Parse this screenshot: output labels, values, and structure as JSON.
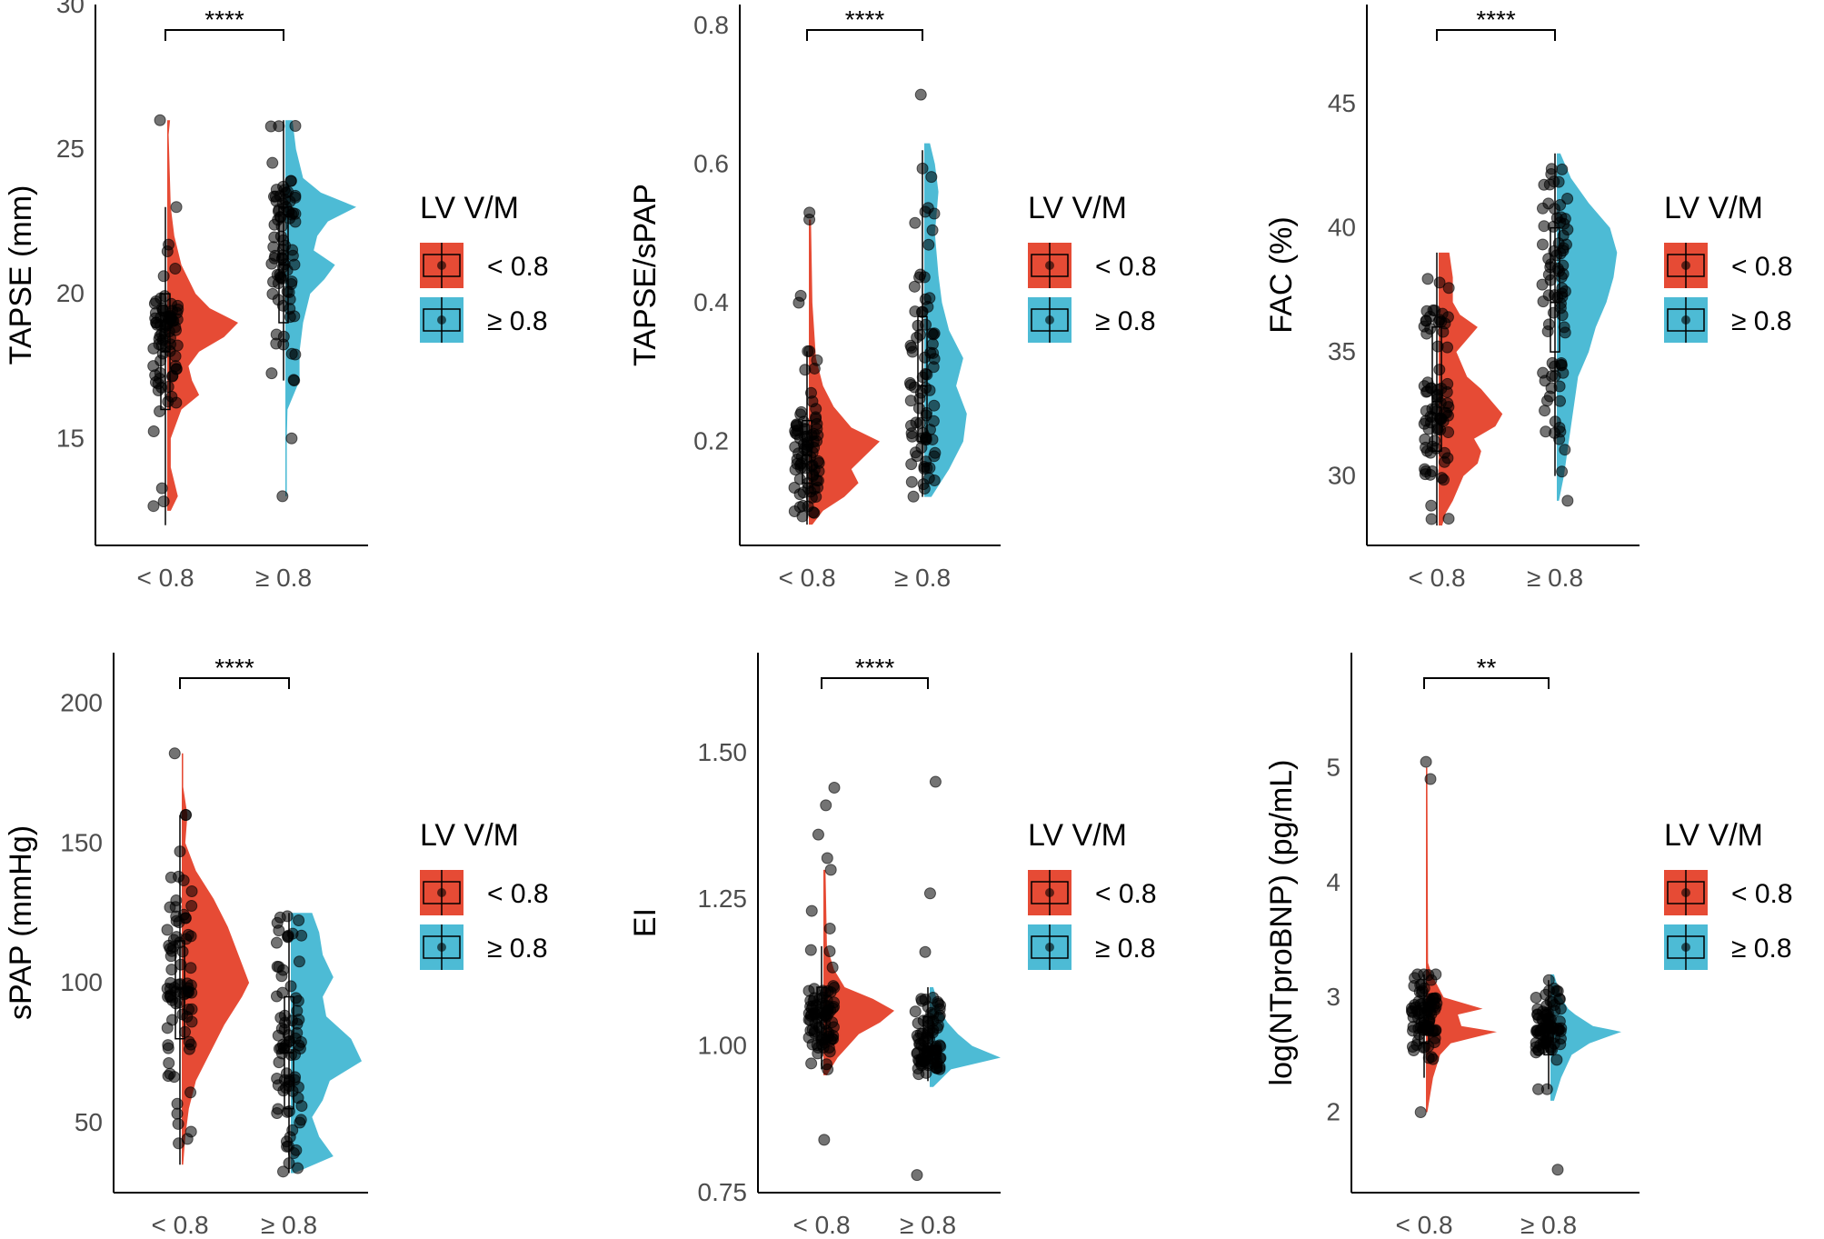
{
  "colors": {
    "group1": "#E64B35",
    "group2": "#4DBBD5",
    "point": "#000000",
    "axis": "#000000",
    "tick_text": "#4D4D4D"
  },
  "legend": {
    "title": "LV V/M",
    "items": [
      "< 0.8",
      "≥ 0.8"
    ]
  },
  "chart_data": [
    {
      "type": "raincloud",
      "title": "",
      "xlabel": "",
      "ylabel": "TAPSE (mm)",
      "categories": [
        "< 0.8",
        "≥ 0.8"
      ],
      "ylim": [
        11.3,
        30
      ],
      "yticks": [
        15,
        20,
        25,
        30
      ],
      "significance": "****",
      "series": [
        {
          "name": "< 0.8",
          "min": 12,
          "q1": 16,
          "median": 18,
          "q3": 20,
          "max": 23,
          "outliers": [
            26
          ],
          "density": [
            [
              12.5,
              0.05
            ],
            [
              13,
              0.15
            ],
            [
              13.5,
              0.1
            ],
            [
              14,
              0.05
            ],
            [
              15,
              0.05
            ],
            [
              16,
              0.2
            ],
            [
              16.5,
              0.45
            ],
            [
              17,
              0.35
            ],
            [
              17.5,
              0.3
            ],
            [
              18,
              0.45
            ],
            [
              18.5,
              0.8
            ],
            [
              19,
              1.0
            ],
            [
              19.5,
              0.6
            ],
            [
              20,
              0.4
            ],
            [
              21,
              0.2
            ],
            [
              22,
              0.1
            ],
            [
              23,
              0.05
            ],
            [
              25.5,
              0.02
            ],
            [
              26,
              0.04
            ]
          ]
        },
        {
          "name": "≥ 0.8",
          "min": 17,
          "q1": 19,
          "median": 21,
          "q3": 23,
          "max": 26,
          "outliers": [
            15,
            13
          ],
          "density": [
            [
              13,
              0.02
            ],
            [
              15,
              0.02
            ],
            [
              16,
              0.03
            ],
            [
              17,
              0.2
            ],
            [
              18,
              0.2
            ],
            [
              19,
              0.25
            ],
            [
              20,
              0.35
            ],
            [
              20.5,
              0.55
            ],
            [
              21,
              0.7
            ],
            [
              21.5,
              0.4
            ],
            [
              22,
              0.45
            ],
            [
              22.5,
              0.6
            ],
            [
              23,
              1.0
            ],
            [
              23.5,
              0.5
            ],
            [
              24,
              0.25
            ],
            [
              25,
              0.15
            ],
            [
              26,
              0.1
            ]
          ]
        }
      ]
    },
    {
      "type": "raincloud",
      "title": "",
      "xlabel": "",
      "ylabel": "TAPSE/sPAP",
      "categories": [
        "< 0.8",
        "≥ 0.8"
      ],
      "ylim": [
        0.05,
        0.83
      ],
      "yticks": [
        0.2,
        0.4,
        0.6,
        0.8
      ],
      "significance": "****",
      "series": [
        {
          "name": "< 0.8",
          "min": 0.08,
          "q1": 0.14,
          "median": 0.18,
          "q3": 0.23,
          "max": 0.33,
          "outliers": [
            0.4,
            0.41,
            0.52,
            0.53
          ],
          "density": [
            [
              0.08,
              0.05
            ],
            [
              0.1,
              0.2
            ],
            [
              0.12,
              0.5
            ],
            [
              0.14,
              0.7
            ],
            [
              0.16,
              0.6
            ],
            [
              0.18,
              0.8
            ],
            [
              0.2,
              1.0
            ],
            [
              0.22,
              0.6
            ],
            [
              0.25,
              0.35
            ],
            [
              0.28,
              0.2
            ],
            [
              0.32,
              0.1
            ],
            [
              0.4,
              0.05
            ],
            [
              0.52,
              0.03
            ]
          ]
        },
        {
          "name": "≥ 0.8",
          "min": 0.12,
          "q1": 0.2,
          "median": 0.28,
          "q3": 0.38,
          "max": 0.62,
          "outliers": [
            0.7
          ],
          "density": [
            [
              0.12,
              0.1
            ],
            [
              0.16,
              0.35
            ],
            [
              0.2,
              0.55
            ],
            [
              0.24,
              0.6
            ],
            [
              0.28,
              0.45
            ],
            [
              0.32,
              0.55
            ],
            [
              0.36,
              0.35
            ],
            [
              0.4,
              0.25
            ],
            [
              0.44,
              0.2
            ],
            [
              0.5,
              0.15
            ],
            [
              0.56,
              0.2
            ],
            [
              0.6,
              0.15
            ],
            [
              0.63,
              0.08
            ]
          ]
        }
      ]
    },
    {
      "type": "raincloud",
      "title": "",
      "xlabel": "",
      "ylabel": "FAC (%)",
      "categories": [
        "< 0.8",
        "≥ 0.8"
      ],
      "ylim": [
        27.2,
        49
      ],
      "yticks": [
        30,
        35,
        40,
        45
      ],
      "significance": "****",
      "series": [
        {
          "name": "< 0.8",
          "min": 28,
          "q1": 31,
          "median": 33,
          "q3": 36,
          "max": 39,
          "outliers": [],
          "density": [
            [
              28,
              0.05
            ],
            [
              28.5,
              0.1
            ],
            [
              29,
              0.2
            ],
            [
              30,
              0.35
            ],
            [
              30.5,
              0.55
            ],
            [
              31,
              0.6
            ],
            [
              31.5,
              0.5
            ],
            [
              32,
              0.8
            ],
            [
              32.5,
              0.9
            ],
            [
              33,
              0.75
            ],
            [
              33.5,
              0.6
            ],
            [
              34,
              0.4
            ],
            [
              35,
              0.25
            ],
            [
              35.5,
              0.4
            ],
            [
              36,
              0.55
            ],
            [
              36.5,
              0.3
            ],
            [
              37,
              0.2
            ],
            [
              38,
              0.2
            ],
            [
              39,
              0.15
            ]
          ]
        },
        {
          "name": "≥ 0.8",
          "min": 30,
          "q1": 35,
          "median": 37,
          "q3": 40,
          "max": 43,
          "outliers": [
            29
          ],
          "density": [
            [
              29,
              0.03
            ],
            [
              30,
              0.1
            ],
            [
              31,
              0.15
            ],
            [
              32,
              0.2
            ],
            [
              33,
              0.25
            ],
            [
              34,
              0.3
            ],
            [
              35,
              0.45
            ],
            [
              36,
              0.55
            ],
            [
              37,
              0.7
            ],
            [
              38,
              0.8
            ],
            [
              39,
              0.85
            ],
            [
              40,
              0.75
            ],
            [
              41,
              0.45
            ],
            [
              42,
              0.2
            ],
            [
              43,
              0.05
            ]
          ]
        }
      ]
    },
    {
      "type": "raincloud",
      "title": "",
      "xlabel": "",
      "ylabel": "sPAP (mmHg)",
      "categories": [
        "< 0.8",
        "≥ 0.8"
      ],
      "ylim": [
        25,
        218
      ],
      "yticks": [
        50,
        100,
        150,
        200
      ],
      "significance": "****",
      "series": [
        {
          "name": "< 0.8",
          "min": 35,
          "q1": 80,
          "median": 98,
          "q3": 115,
          "max": 160,
          "outliers": [
            182
          ],
          "density": [
            [
              35,
              0.02
            ],
            [
              45,
              0.05
            ],
            [
              55,
              0.1
            ],
            [
              65,
              0.2
            ],
            [
              75,
              0.4
            ],
            [
              85,
              0.6
            ],
            [
              95,
              0.85
            ],
            [
              100,
              0.95
            ],
            [
              110,
              0.8
            ],
            [
              120,
              0.65
            ],
            [
              130,
              0.45
            ],
            [
              140,
              0.2
            ],
            [
              150,
              0.05
            ],
            [
              160,
              0.08
            ],
            [
              170,
              0.02
            ],
            [
              182,
              0.02
            ]
          ]
        },
        {
          "name": "≥ 0.8",
          "min": 32,
          "q1": 55,
          "median": 75,
          "q3": 95,
          "max": 125,
          "outliers": [],
          "density": [
            [
              32,
              0.05
            ],
            [
              38,
              0.6
            ],
            [
              45,
              0.4
            ],
            [
              52,
              0.3
            ],
            [
              58,
              0.45
            ],
            [
              65,
              0.55
            ],
            [
              72,
              1.0
            ],
            [
              80,
              0.85
            ],
            [
              88,
              0.5
            ],
            [
              95,
              0.45
            ],
            [
              102,
              0.6
            ],
            [
              110,
              0.45
            ],
            [
              118,
              0.4
            ],
            [
              125,
              0.3
            ]
          ]
        }
      ]
    },
    {
      "type": "raincloud",
      "title": "",
      "xlabel": "",
      "ylabel": "EI",
      "categories": [
        "< 0.8",
        "≥ 0.8"
      ],
      "ylim": [
        0.75,
        1.67
      ],
      "yticks": [
        0.75,
        1.0,
        1.25,
        1.5
      ],
      "significance": "****",
      "series": [
        {
          "name": "< 0.8",
          "min": 0.96,
          "q1": 1.01,
          "median": 1.05,
          "q3": 1.1,
          "max": 1.17,
          "outliers": [
            0.84,
            1.2,
            1.23,
            1.3,
            1.32,
            1.36,
            1.41,
            1.44
          ],
          "density": [
            [
              0.95,
              0.05
            ],
            [
              0.98,
              0.2
            ],
            [
              1.0,
              0.35
            ],
            [
              1.02,
              0.5
            ],
            [
              1.04,
              0.8
            ],
            [
              1.06,
              1.0
            ],
            [
              1.08,
              0.7
            ],
            [
              1.1,
              0.3
            ],
            [
              1.13,
              0.15
            ],
            [
              1.17,
              0.05
            ],
            [
              1.3,
              0.03
            ]
          ]
        },
        {
          "name": "≥ 0.8",
          "min": 0.94,
          "q1": 0.97,
          "median": 1.0,
          "q3": 1.05,
          "max": 1.1,
          "outliers": [
            0.78,
            1.16,
            1.26,
            1.45
          ],
          "density": [
            [
              0.93,
              0.05
            ],
            [
              0.96,
              0.3
            ],
            [
              0.98,
              1.0
            ],
            [
              1.0,
              0.6
            ],
            [
              1.02,
              0.4
            ],
            [
              1.04,
              0.25
            ],
            [
              1.06,
              0.15
            ],
            [
              1.08,
              0.1
            ],
            [
              1.1,
              0.05
            ]
          ]
        }
      ]
    },
    {
      "type": "raincloud",
      "title": "",
      "xlabel": "",
      "ylabel": "log(NTproBNP) (pg/mL)",
      "categories": [
        "< 0.8",
        "≥ 0.8"
      ],
      "ylim": [
        1.3,
        6
      ],
      "yticks": [
        2,
        3,
        4,
        5
      ],
      "significance": "**",
      "series": [
        {
          "name": "< 0.8",
          "min": 2.3,
          "q1": 2.6,
          "median": 2.75,
          "q3": 2.9,
          "max": 3.2,
          "outliers": [
            2.0,
            4.9,
            5.05
          ],
          "density": [
            [
              2.0,
              0.02
            ],
            [
              2.3,
              0.1
            ],
            [
              2.5,
              0.2
            ],
            [
              2.6,
              0.35
            ],
            [
              2.7,
              1.0
            ],
            [
              2.75,
              0.5
            ],
            [
              2.85,
              0.45
            ],
            [
              2.9,
              0.8
            ],
            [
              3.0,
              0.25
            ],
            [
              3.2,
              0.08
            ],
            [
              3.3,
              0.03
            ],
            [
              5.0,
              0.02
            ]
          ]
        },
        {
          "name": "≥ 0.8",
          "min": 2.2,
          "q1": 2.5,
          "median": 2.65,
          "q3": 2.8,
          "max": 3.15,
          "outliers": [
            1.5
          ],
          "density": [
            [
              2.1,
              0.05
            ],
            [
              2.3,
              0.15
            ],
            [
              2.5,
              0.3
            ],
            [
              2.6,
              0.55
            ],
            [
              2.7,
              1.0
            ],
            [
              2.75,
              0.6
            ],
            [
              2.85,
              0.35
            ],
            [
              2.9,
              0.25
            ],
            [
              3.0,
              0.15
            ],
            [
              3.1,
              0.1
            ],
            [
              3.2,
              0.05
            ]
          ]
        }
      ]
    }
  ]
}
